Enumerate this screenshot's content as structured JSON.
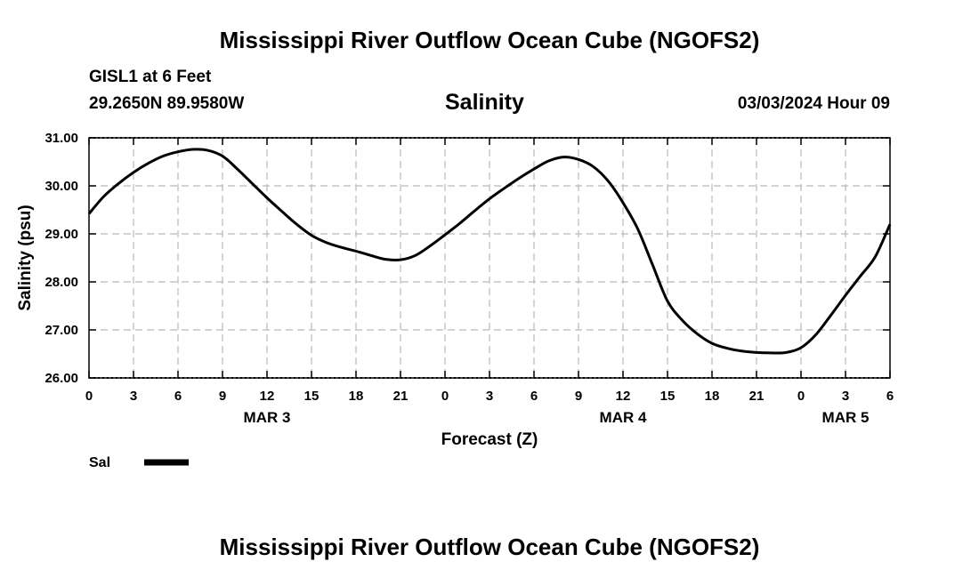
{
  "header": {
    "title": "Mississippi River Outflow Ocean Cube (NGOFS2)",
    "station": "GISL1 at 6 Feet",
    "coords": "29.2650N  89.9580W",
    "timestamp": "03/03/2024 Hour 09"
  },
  "footer": {
    "title": "Mississippi River Outflow Ocean Cube (NGOFS2)"
  },
  "chart_data": {
    "type": "line",
    "title": "Salinity",
    "xlabel": "Forecast (Z)",
    "ylabel": "Salinity (psu)",
    "xlim": [
      0,
      54
    ],
    "ylim": [
      26,
      31
    ],
    "grid": true,
    "x_ticks": [
      0,
      3,
      6,
      9,
      12,
      15,
      18,
      21,
      24,
      27,
      30,
      33,
      36,
      39,
      42,
      45,
      48,
      51,
      54
    ],
    "x_tick_labels": [
      "0",
      "3",
      "6",
      "9",
      "12",
      "15",
      "18",
      "21",
      "0",
      "3",
      "6",
      "9",
      "12",
      "15",
      "18",
      "21",
      "0",
      "3",
      "6"
    ],
    "y_ticks": [
      26,
      27,
      28,
      29,
      30,
      31
    ],
    "y_tick_labels": [
      "26.00",
      "27.00",
      "28.00",
      "29.00",
      "30.00",
      "31.00"
    ],
    "day_labels": [
      {
        "x": 12,
        "label": "MAR 3"
      },
      {
        "x": 36,
        "label": "MAR 4"
      },
      {
        "x": 51,
        "label": "MAR 5"
      }
    ],
    "legend": {
      "label": "Sal",
      "position": "bottom-left"
    },
    "line_color": "#000000",
    "series": [
      {
        "name": "Sal",
        "x": [
          0,
          1,
          2,
          3,
          4,
          5,
          6,
          7,
          8,
          9,
          10,
          11,
          12,
          13,
          14,
          15,
          16,
          17,
          18,
          19,
          20,
          21,
          22,
          23,
          24,
          25,
          26,
          27,
          28,
          29,
          30,
          31,
          32,
          33,
          34,
          35,
          36,
          37,
          38,
          39,
          40,
          41,
          42,
          43,
          44,
          45,
          46,
          47,
          48,
          49,
          50,
          51,
          52,
          53,
          54
        ],
        "values": [
          29.42,
          29.78,
          30.05,
          30.28,
          30.47,
          30.62,
          30.71,
          30.76,
          30.74,
          30.62,
          30.35,
          30.05,
          29.75,
          29.47,
          29.2,
          28.97,
          28.82,
          28.72,
          28.64,
          28.55,
          28.47,
          28.46,
          28.55,
          28.75,
          28.98,
          29.22,
          29.48,
          29.73,
          29.95,
          30.16,
          30.35,
          30.52,
          30.6,
          30.55,
          30.4,
          30.1,
          29.65,
          29.1,
          28.35,
          27.6,
          27.2,
          26.92,
          26.72,
          26.62,
          26.56,
          26.53,
          26.52,
          26.53,
          26.63,
          26.9,
          27.3,
          27.72,
          28.12,
          28.52,
          29.2
        ]
      }
    ]
  }
}
